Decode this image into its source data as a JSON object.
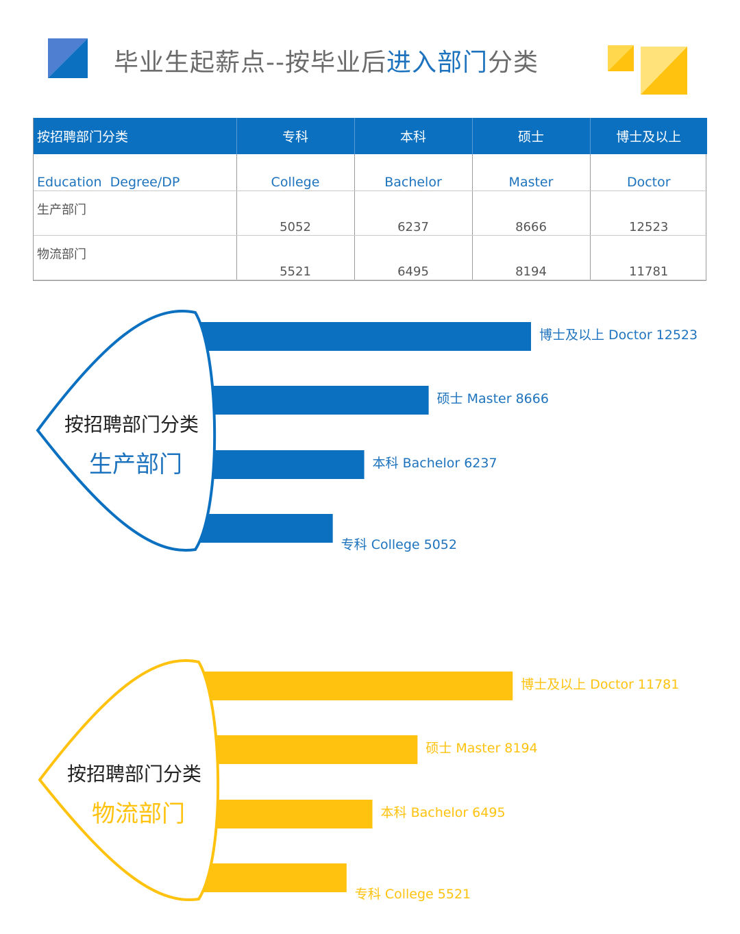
{
  "header": {
    "title_part1": "毕业生起薪点--按毕业后",
    "title_part2": "进入部门",
    "title_part3": "分类"
  },
  "table": {
    "columns": [
      "按招聘部门分类",
      "专科",
      "本科",
      "硕士",
      "博士及以上"
    ],
    "subheader": [
      "Education  Degree/DP",
      "College",
      "Bachelor",
      "Master",
      "Doctor"
    ],
    "rows": [
      [
        "生产部门",
        "5052",
        "6237",
        "8666",
        "12523"
      ],
      [
        "物流部门",
        "5521",
        "6495",
        "8194",
        "11781"
      ]
    ]
  },
  "colors": {
    "blue": "#0c70c1",
    "yellow": "#ffc20e",
    "header_gray": "#6b6b6b"
  },
  "chart_data": [
    {
      "type": "bar",
      "orientation": "horizontal",
      "heading": "按招聘部门分类",
      "series_name": "生产部门",
      "color": "#0c70c1",
      "categories": [
        "博士及以上 Doctor",
        "硕士 Master",
        "本科 Bachelor",
        "专科 College"
      ],
      "labels": [
        "博士及以上 Doctor 12523",
        "硕士 Master 8666",
        "本科 Bachelor 6237",
        "专科 College 5052"
      ],
      "values": [
        12523,
        8666,
        6237,
        5052
      ]
    },
    {
      "type": "bar",
      "orientation": "horizontal",
      "heading": "按招聘部门分类",
      "series_name": "物流部门",
      "color": "#ffc20e",
      "categories": [
        "博士及以上 Doctor",
        "硕士 Master",
        "本科 Bachelor",
        "专科 College"
      ],
      "labels": [
        "博士及以上 Doctor 11781",
        "硕士 Master 8194",
        "本科 Bachelor 6495",
        "专科 College 5521"
      ],
      "values": [
        11781,
        8194,
        6495,
        5521
      ]
    }
  ]
}
